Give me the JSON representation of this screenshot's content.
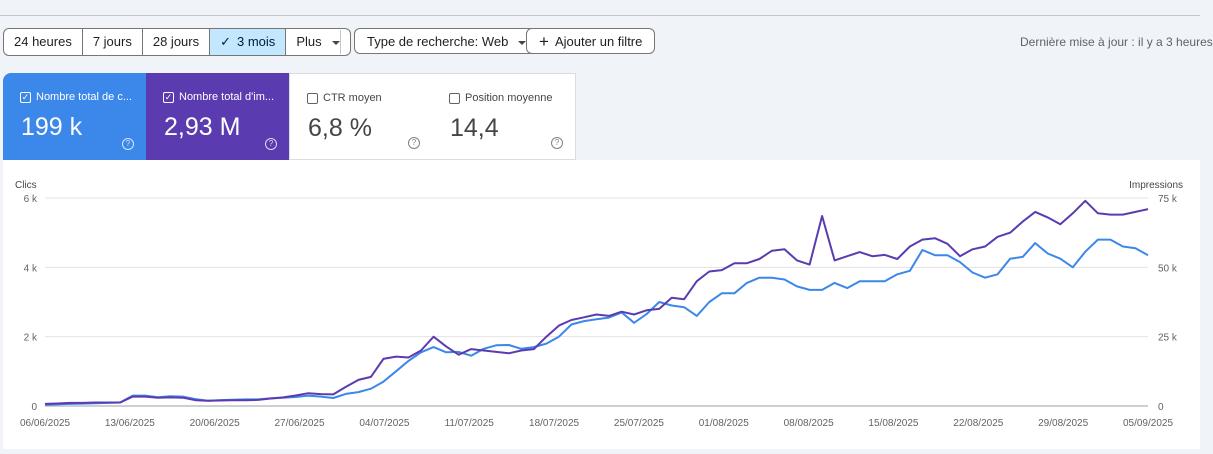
{
  "toolbar": {
    "ranges": [
      {
        "label": "24 heures",
        "selected": false
      },
      {
        "label": "7 jours",
        "selected": false
      },
      {
        "label": "28 jours",
        "selected": false
      },
      {
        "label": "3 mois",
        "selected": true,
        "icon": "check-icon"
      },
      {
        "label": "Plus",
        "selected": false,
        "icon": "caret-down-icon"
      }
    ],
    "search_type": "Type de recherche: Web",
    "add_filter": "Ajouter un filtre",
    "last_update": "Dernière mise à jour : il y a 3 heures"
  },
  "metrics": [
    {
      "label": "Nombre total de c...",
      "value": "199 k",
      "checked": true,
      "color": "#3c87ea"
    },
    {
      "label": "Nombre total d'im...",
      "value": "2,93 M",
      "checked": true,
      "color": "#5b3bb0"
    },
    {
      "label": "CTR moyen",
      "value": "6,8 %",
      "checked": false
    },
    {
      "label": "Position moyenne",
      "value": "14,4",
      "checked": false
    }
  ],
  "chart_data": {
    "type": "line",
    "ylabel_left": "Clics",
    "ylabel_right": "Impressions",
    "ylim_left": [
      0,
      6000
    ],
    "ylim_right": [
      0,
      75000
    ],
    "yticks_left": [
      "0",
      "2 k",
      "4 k",
      "6 k"
    ],
    "yticks_right": [
      "0",
      "25 k",
      "50 k",
      "75 k"
    ],
    "x_tick_labels": [
      "06/06/2025",
      "13/06/2025",
      "20/06/2025",
      "27/06/2025",
      "04/07/2025",
      "11/07/2025",
      "18/07/2025",
      "25/07/2025",
      "01/08/2025",
      "08/08/2025",
      "15/08/2025",
      "22/08/2025",
      "29/08/2025",
      "05/09/2025"
    ],
    "grid": true,
    "series": [
      {
        "name": "Clics",
        "axis": "left",
        "color": "#3c87ea",
        "values": [
          40,
          50,
          60,
          70,
          80,
          90,
          100,
          300,
          300,
          250,
          280,
          270,
          200,
          150,
          170,
          180,
          190,
          190,
          220,
          240,
          260,
          300,
          270,
          230,
          350,
          400,
          500,
          700,
          1000,
          1300,
          1550,
          1700,
          1550,
          1560,
          1450,
          1650,
          1750,
          1760,
          1650,
          1700,
          1800,
          2000,
          2350,
          2450,
          2500,
          2550,
          2700,
          2400,
          2650,
          3000,
          2900,
          2850,
          2600,
          3000,
          3250,
          3250,
          3550,
          3700,
          3700,
          3650,
          3450,
          3350,
          3350,
          3550,
          3400,
          3600,
          3600,
          3600,
          3800,
          3900,
          4500,
          4350,
          4350,
          4150,
          3850,
          3700,
          3800,
          4250,
          4300,
          4700,
          4400,
          4250,
          4000,
          4450,
          4800,
          4800,
          4600,
          4550,
          4350
        ]
      },
      {
        "name": "Impressions",
        "axis": "right",
        "color": "#5b3bb0",
        "values": [
          750,
          900,
          1100,
          1100,
          1250,
          1250,
          1250,
          3400,
          3400,
          3000,
          3100,
          3000,
          2100,
          1900,
          2000,
          2100,
          2100,
          2200,
          2700,
          3100,
          3800,
          4600,
          4300,
          4200,
          6900,
          9400,
          10500,
          17000,
          17800,
          17500,
          20000,
          25000,
          21500,
          18500,
          20500,
          20000,
          19500,
          19000,
          20000,
          20500,
          25000,
          29000,
          31000,
          32000,
          33000,
          32500,
          34000,
          33000,
          34500,
          35000,
          39000,
          38500,
          45000,
          48500,
          49000,
          51500,
          51500,
          53000,
          56000,
          56500,
          52500,
          51000,
          68500,
          52500,
          54000,
          55500,
          54000,
          54500,
          53000,
          57500,
          60000,
          60500,
          58500,
          54000,
          56500,
          57500,
          61000,
          62500,
          66500,
          70000,
          68000,
          65500,
          69500,
          74000,
          69500,
          69000,
          69000,
          70000,
          71000
        ]
      }
    ]
  }
}
